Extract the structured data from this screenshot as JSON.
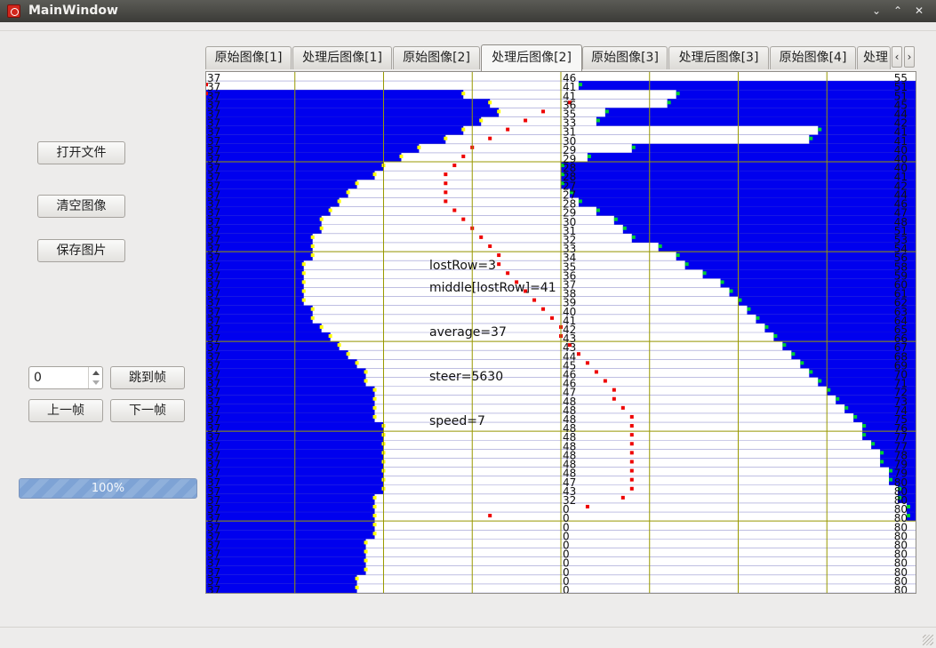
{
  "window": {
    "title": "MainWindow",
    "controls": [
      "⌄",
      "⌃",
      "✕"
    ]
  },
  "buttons": {
    "open_file": "打开文件",
    "clear_image": "清空图像",
    "save_image": "保存图片",
    "jump_frame": "跳到帧",
    "prev_frame": "上一帧",
    "next_frame": "下一帧"
  },
  "frame_spinbox": {
    "value": "0"
  },
  "progress": {
    "value": 1.0,
    "label": "100%"
  },
  "tabs": [
    {
      "label": "原始图像[1]",
      "active": false
    },
    {
      "label": "处理后图像[1]",
      "active": false
    },
    {
      "label": "原始图像[2]",
      "active": false
    },
    {
      "label": "处理后图像[2]",
      "active": true
    },
    {
      "label": "原始图像[3]",
      "active": false
    },
    {
      "label": "处理后图像[3]",
      "active": false
    },
    {
      "label": "原始图像[4]",
      "active": false
    },
    {
      "label": "处理",
      "active": false
    }
  ],
  "tab_scroll": {
    "left": "‹",
    "right": "›"
  },
  "overlay": {
    "lost_row": "lostRow=3",
    "middle": "middle[lostRow]=41",
    "average": "average=37",
    "steer": "steer=5630",
    "speed": "speed=7"
  },
  "image": {
    "colors": {
      "track": "#0000ee",
      "background": "#ffffff",
      "grid": "#999900",
      "left_edge": "#ffff00",
      "right_edge": "#00cc33",
      "midline": "#ee0000",
      "row_line": "#4444aa"
    },
    "row_count": 58,
    "column_count": 80,
    "grid_columns": [
      10,
      20,
      30,
      40,
      50,
      60,
      70
    ],
    "grid_rows": [
      10,
      20,
      30,
      40,
      50
    ],
    "left_edges": [
      0,
      0,
      29,
      32,
      33,
      31,
      29,
      27,
      24,
      22,
      20,
      19,
      17,
      16,
      15,
      14,
      13,
      13,
      12,
      12,
      12,
      11,
      11,
      11,
      11,
      11,
      12,
      12,
      13,
      14,
      15,
      16,
      17,
      18,
      18,
      19,
      19,
      19,
      19,
      20,
      20,
      20,
      20,
      20,
      20,
      20,
      20,
      19,
      19,
      19,
      19,
      19,
      18,
      18,
      18,
      18,
      17,
      17
    ],
    "right_edges": [
      80,
      42,
      53,
      52,
      45,
      44,
      69,
      68,
      48,
      43,
      40,
      40,
      40,
      41,
      42,
      44,
      46,
      47,
      48,
      51,
      53,
      54,
      56,
      58,
      59,
      60,
      61,
      62,
      63,
      64,
      65,
      66,
      67,
      68,
      69,
      70,
      71,
      72,
      73,
      74,
      74,
      75,
      76,
      76,
      77,
      77,
      78,
      78,
      79,
      79,
      80,
      80,
      80,
      80,
      80,
      80,
      80,
      80
    ],
    "left_row_labels": [
      "37",
      "37",
      "37",
      "37",
      "37",
      "37",
      "37",
      "37",
      "37",
      "37",
      "37",
      "37",
      "37",
      "37",
      "37",
      "37",
      "37",
      "37",
      "37",
      "37",
      "37",
      "37",
      "37",
      "37",
      "37",
      "37",
      "37",
      "37",
      "37",
      "37",
      "37",
      "37",
      "37",
      "37",
      "37",
      "37",
      "37",
      "37",
      "37",
      "37",
      "37",
      "37",
      "37",
      "37",
      "37",
      "37",
      "37",
      "37",
      "37",
      "37",
      "37",
      "37",
      "37",
      "37",
      "37",
      "37",
      "37",
      "37"
    ],
    "mid_row_labels": [
      "46",
      "41",
      "41",
      "36",
      "35",
      "33",
      "31",
      "30",
      "29",
      "29",
      "28",
      "28",
      "27",
      "27",
      "28",
      "29",
      "30",
      "31",
      "32",
      "33",
      "34",
      "35",
      "36",
      "37",
      "38",
      "39",
      "40",
      "41",
      "42",
      "43",
      "43",
      "44",
      "45",
      "46",
      "46",
      "47",
      "48",
      "48",
      "48",
      "48",
      "48",
      "48",
      "48",
      "48",
      "48",
      "47",
      "43",
      "32",
      "0",
      "0",
      "0",
      "0",
      "0",
      "0",
      "0",
      "0",
      "0",
      "0"
    ],
    "right_row_labels": [
      "55",
      "51",
      "51",
      "45",
      "44",
      "42",
      "41",
      "41",
      "40",
      "40",
      "40",
      "41",
      "42",
      "44",
      "46",
      "47",
      "48",
      "51",
      "53",
      "54",
      "56",
      "58",
      "59",
      "60",
      "61",
      "62",
      "63",
      "64",
      "65",
      "66",
      "67",
      "68",
      "69",
      "70",
      "71",
      "72",
      "73",
      "74",
      "75",
      "76",
      "77",
      "77",
      "78",
      "79",
      "79",
      "80",
      "80",
      "80",
      "80",
      "80",
      "80",
      "80",
      "80",
      "80",
      "80",
      "80",
      "80",
      "80"
    ],
    "midline": [
      null,
      0,
      0,
      41,
      38,
      36,
      34,
      32,
      30,
      29,
      28,
      27,
      27,
      27,
      27,
      28,
      29,
      30,
      31,
      32,
      33,
      33,
      34,
      35,
      36,
      37,
      38,
      39,
      40,
      40,
      41,
      42,
      43,
      44,
      45,
      46,
      46,
      47,
      48,
      48,
      48,
      48,
      48,
      48,
      48,
      48,
      48,
      47,
      43,
      32,
      null,
      null,
      null,
      null,
      null,
      null,
      null,
      null
    ]
  }
}
